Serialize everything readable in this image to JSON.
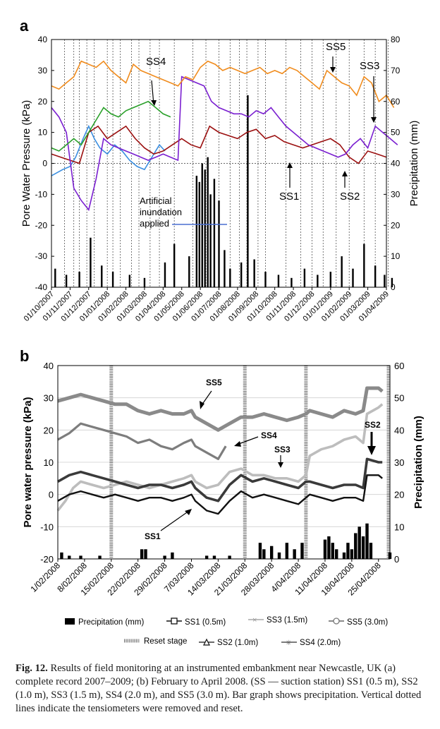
{
  "chart_data": [
    {
      "panel": "a",
      "type": "line",
      "ylabel": "Pore Water Pressure (kPa)",
      "y2label": "Precipitation (mm)",
      "ylim": [
        -40,
        40
      ],
      "y2lim": [
        0,
        80
      ],
      "yticks": [
        "40",
        "30",
        "20",
        "10",
        "0",
        "-10",
        "-20",
        "-30",
        "-40"
      ],
      "y2ticks": [
        "80",
        "70",
        "60",
        "50",
        "40",
        "30",
        "20",
        "10",
        "0"
      ],
      "x_ticks": [
        "01/10/2007",
        "01/11/2007",
        "01/12/2007",
        "01/01/2008",
        "01/02/2008",
        "01/03/2008",
        "01/04/2008",
        "01/05/2008",
        "01/06/2008",
        "01/07/2008",
        "01/08/2008",
        "01/09/2008",
        "01/10/2008",
        "01/11/2008",
        "01/12/2008",
        "01/01/2009",
        "01/02/2009",
        "01/03/2009",
        "01/04/2009"
      ],
      "annotations": {
        "ss4": "SS4",
        "ss5": "SS5",
        "ss3": "SS3",
        "ss1": "SS1",
        "ss2": "SS2",
        "inundation": "Artificial inundation applied"
      },
      "series": [
        {
          "name": "SS1",
          "color": "#3a8ee0",
          "x_months": [
            0,
            0.6,
            1,
            1.3,
            1.7,
            2,
            2.3,
            2.6,
            3,
            3.4,
            3.8,
            4.2,
            4.6,
            5,
            5.4,
            5.8,
            6.1
          ],
          "y": [
            -4,
            -2,
            -1,
            2,
            8,
            12,
            8,
            5,
            3,
            6,
            4,
            1,
            -1,
            -2,
            2,
            6,
            4
          ]
        },
        {
          "name": "SS2",
          "color": "#9b1010",
          "x_months": [
            0,
            0.5,
            1,
            1.5,
            2,
            2.5,
            3,
            3.5,
            4,
            4.5,
            5,
            5.5,
            6,
            6.5,
            7,
            7.5,
            8,
            8.5,
            9,
            9.5,
            10,
            10.5,
            11,
            11.5,
            12,
            12.5,
            13,
            13.5,
            14,
            14.5,
            15,
            15.5,
            16,
            16.5,
            17,
            17.5,
            18
          ],
          "y": [
            3,
            2,
            1,
            0,
            10,
            12,
            8,
            10,
            12,
            8,
            5,
            3,
            4,
            6,
            8,
            6,
            5,
            12,
            10,
            9,
            8,
            10,
            11,
            8,
            9,
            7,
            6,
            5,
            6,
            7,
            8,
            6,
            2,
            0,
            4,
            3,
            2
          ]
        },
        {
          "name": "SS3",
          "color": "#7a1fd0",
          "x_months": [
            0,
            0.4,
            0.8,
            1.2,
            1.6,
            2,
            2.4,
            2.8,
            3.2,
            3.6,
            4,
            4.4,
            4.8,
            5.2,
            5.6,
            6,
            6.4,
            6.8,
            7,
            7.4,
            7.8,
            8.2,
            8.6,
            9,
            9.4,
            9.8,
            10.2,
            10.6,
            11,
            11.4,
            11.8,
            12.2,
            12.6,
            13,
            13.4,
            13.8,
            14.2,
            14.6,
            15,
            15.4,
            15.8,
            16.2,
            16.6,
            17,
            17.4,
            17.8,
            18.2,
            18.6
          ],
          "y": [
            18,
            15,
            10,
            -8,
            -12,
            -15,
            -5,
            8,
            6,
            5,
            4,
            3,
            2,
            1,
            2,
            3,
            2,
            1,
            28,
            27,
            26,
            25,
            20,
            18,
            17,
            16,
            16,
            15,
            17,
            16,
            18,
            15,
            12,
            10,
            8,
            6,
            5,
            4,
            3,
            2,
            3,
            6,
            8,
            5,
            12,
            10,
            8,
            6
          ]
        },
        {
          "name": "SS4",
          "color": "#2aa02a",
          "x_months": [
            0,
            0.4,
            0.8,
            1.2,
            1.6,
            2,
            2.4,
            2.8,
            3.2,
            3.6,
            4,
            4.4,
            4.8,
            5.2,
            5.6,
            6,
            6.4
          ],
          "y": [
            5,
            4,
            6,
            8,
            6,
            10,
            14,
            18,
            16,
            15,
            17,
            18,
            19,
            20,
            18,
            16,
            15
          ]
        },
        {
          "name": "SS5",
          "color": "#f08c1e",
          "x_months": [
            0,
            0.4,
            0.8,
            1.2,
            1.6,
            2,
            2.4,
            2.8,
            3.2,
            3.6,
            4,
            4.4,
            4.8,
            5.2,
            5.6,
            6,
            6.4,
            6.8,
            7.2,
            7.6,
            8,
            8.4,
            8.8,
            9.2,
            9.6,
            10,
            10.4,
            10.8,
            11.2,
            11.6,
            12,
            12.4,
            12.8,
            13.2,
            13.6,
            14,
            14.4,
            14.8,
            15.2,
            15.6,
            16,
            16.4,
            16.8,
            17.2,
            17.6,
            18,
            18.4
          ],
          "y": [
            25,
            24,
            26,
            28,
            33,
            32,
            31,
            33,
            30,
            28,
            26,
            32,
            30,
            29,
            28,
            27,
            26,
            25,
            28,
            27,
            31,
            33,
            32,
            30,
            31,
            30,
            29,
            30,
            31,
            29,
            30,
            29,
            31,
            30,
            28,
            26,
            24,
            30,
            28,
            26,
            25,
            22,
            28,
            26,
            20,
            22,
            18
          ]
        }
      ],
      "precipitation_mm": [
        {
          "x_month": 0.2,
          "v": 6
        },
        {
          "x_month": 0.8,
          "v": 4
        },
        {
          "x_month": 1.5,
          "v": 5
        },
        {
          "x_month": 2.1,
          "v": 16
        },
        {
          "x_month": 2.7,
          "v": 7
        },
        {
          "x_month": 3.3,
          "v": 5
        },
        {
          "x_month": 4.2,
          "v": 4
        },
        {
          "x_month": 5.0,
          "v": 3
        },
        {
          "x_month": 6.1,
          "v": 8
        },
        {
          "x_month": 6.6,
          "v": 14
        },
        {
          "x_month": 7.4,
          "v": 10
        },
        {
          "x_month": 7.8,
          "v": 36
        },
        {
          "x_month": 7.95,
          "v": 34
        },
        {
          "x_month": 8.1,
          "v": 40
        },
        {
          "x_month": 8.25,
          "v": 38
        },
        {
          "x_month": 8.4,
          "v": 42
        },
        {
          "x_month": 8.55,
          "v": 30
        },
        {
          "x_month": 8.75,
          "v": 35
        },
        {
          "x_month": 9.0,
          "v": 28
        },
        {
          "x_month": 9.3,
          "v": 12
        },
        {
          "x_month": 9.6,
          "v": 6
        },
        {
          "x_month": 10.2,
          "v": 8
        },
        {
          "x_month": 10.55,
          "v": 62
        },
        {
          "x_month": 10.9,
          "v": 9
        },
        {
          "x_month": 11.5,
          "v": 5
        },
        {
          "x_month": 12.2,
          "v": 4
        },
        {
          "x_month": 12.9,
          "v": 3
        },
        {
          "x_month": 13.6,
          "v": 6
        },
        {
          "x_month": 14.3,
          "v": 4
        },
        {
          "x_month": 15.0,
          "v": 5
        },
        {
          "x_month": 15.6,
          "v": 10
        },
        {
          "x_month": 16.2,
          "v": 6
        },
        {
          "x_month": 16.8,
          "v": 14
        },
        {
          "x_month": 17.4,
          "v": 7
        },
        {
          "x_month": 17.9,
          "v": 4
        },
        {
          "x_month": 18.3,
          "v": 3
        }
      ],
      "reset_months": [
        0.7,
        1.2,
        1.5,
        1.9,
        2.3,
        3.0,
        3.3,
        3.7,
        4.3,
        4.7,
        5.3,
        5.8,
        6.6,
        7.6,
        8.3,
        9.0,
        9.6,
        10.1,
        10.5,
        11.1,
        11.5,
        12.6,
        13.4,
        14.0,
        14.6,
        15.3,
        16.0,
        16.8,
        17.4,
        18.1
      ]
    },
    {
      "panel": "b",
      "type": "line",
      "ylabel": "Pore water pressure (kPa)",
      "y2label": "Precipitation (mm)",
      "ylim": [
        -20,
        40
      ],
      "y2lim": [
        0,
        60
      ],
      "yticks": [
        "40",
        "30",
        "20",
        "10",
        "0",
        "-10",
        "-20"
      ],
      "y2ticks": [
        "60",
        "50",
        "40",
        "30",
        "20",
        "10",
        "0"
      ],
      "x_ticks": [
        "1/02/2008",
        "8/02/2008",
        "15/02/2008",
        "22/02/2008",
        "29/02/2008",
        "7/03/2008",
        "14/03/2008",
        "21/03/2008",
        "28/03/2008",
        "4/04/2008",
        "11/04/2008",
        "18/04/2008",
        "25/04/2008"
      ],
      "annotations": {
        "ss5": "SS5",
        "ss4": "SS4",
        "ss3": "SS3",
        "ss2": "SS2",
        "ss1": "SS1"
      },
      "series": [
        {
          "name": "SS1 (0.5m)",
          "color": "#111111",
          "x_days": [
            0,
            3,
            6,
            9,
            12,
            15,
            18,
            21,
            24,
            27,
            30,
            33,
            35,
            36,
            39,
            42,
            45,
            48,
            51,
            54,
            57,
            60,
            63,
            65,
            66,
            69,
            72,
            75,
            78,
            80,
            81,
            84,
            85
          ],
          "y": [
            -2,
            0,
            1,
            0,
            -1,
            0,
            -1,
            -2,
            -1,
            -1,
            -2,
            -1,
            0,
            -2,
            -5,
            -6,
            -2,
            1,
            -1,
            0,
            -1,
            -2,
            -3,
            -1,
            0,
            -1,
            -2,
            -1,
            -1,
            -2,
            6,
            6,
            5
          ]
        },
        {
          "name": "SS2 (1.0m)",
          "color": "#3a3a3a",
          "x_days": [
            0,
            3,
            6,
            9,
            12,
            15,
            18,
            21,
            24,
            27,
            30,
            33,
            35,
            36,
            39,
            42,
            45,
            48,
            51,
            54,
            57,
            60,
            63,
            65,
            66,
            69,
            72,
            75,
            78,
            80,
            81,
            84,
            85
          ],
          "y": [
            4,
            6,
            7,
            6,
            5,
            4,
            3,
            2,
            3,
            3,
            2,
            3,
            4,
            2,
            -1,
            -2,
            3,
            6,
            4,
            5,
            4,
            3,
            2,
            4,
            4,
            3,
            2,
            3,
            3,
            2,
            11,
            10,
            10
          ]
        },
        {
          "name": "SS3 (1.5m)",
          "color": "#bdbdbd",
          "x_days": [
            0,
            2,
            4,
            6,
            9,
            12,
            15,
            18,
            21,
            24,
            27,
            30,
            33,
            35,
            36,
            39,
            42,
            45,
            48,
            51,
            54,
            57,
            60,
            63,
            65,
            66,
            69,
            72,
            75,
            78,
            80,
            81,
            84,
            85
          ],
          "y": [
            -5,
            -2,
            2,
            4,
            3,
            2,
            3,
            4,
            3,
            2,
            3,
            4,
            5,
            6,
            4,
            2,
            3,
            7,
            8,
            6,
            6,
            5,
            5,
            4,
            6,
            12,
            14,
            15,
            17,
            18,
            16,
            25,
            27,
            28
          ]
        },
        {
          "name": "SS4 (2.0m)",
          "color": "#7d7d7d",
          "x_days": [
            0,
            3,
            6,
            9,
            12,
            15,
            18,
            21,
            24,
            27,
            30,
            33,
            35,
            36,
            39,
            42,
            44
          ],
          "y": [
            17,
            19,
            22,
            21,
            20,
            19,
            18,
            16,
            17,
            15,
            14,
            16,
            17,
            15,
            13,
            11,
            15
          ]
        },
        {
          "name": "SS5 (3.0m)",
          "color": "#8a8a8a",
          "x_days": [
            0,
            3,
            6,
            9,
            12,
            15,
            18,
            21,
            24,
            27,
            30,
            33,
            35,
            36,
            39,
            42,
            45,
            48,
            51,
            54,
            57,
            60,
            63,
            65,
            66,
            69,
            72,
            75,
            78,
            80,
            81,
            84,
            85
          ],
          "y": [
            29,
            30,
            31,
            30,
            29,
            28,
            28,
            26,
            25,
            26,
            25,
            25,
            26,
            24,
            22,
            20,
            22,
            24,
            24,
            25,
            24,
            23,
            24,
            25,
            26,
            25,
            24,
            26,
            25,
            26,
            33,
            33,
            32
          ]
        }
      ],
      "precipitation_mm": [
        {
          "x_day": 1,
          "v": 2
        },
        {
          "x_day": 3,
          "v": 1
        },
        {
          "x_day": 6,
          "v": 1
        },
        {
          "x_day": 11,
          "v": 1
        },
        {
          "x_day": 22,
          "v": 3
        },
        {
          "x_day": 23,
          "v": 3
        },
        {
          "x_day": 28,
          "v": 1
        },
        {
          "x_day": 30,
          "v": 2
        },
        {
          "x_day": 39,
          "v": 1
        },
        {
          "x_day": 41,
          "v": 1
        },
        {
          "x_day": 45,
          "v": 1
        },
        {
          "x_day": 53,
          "v": 5
        },
        {
          "x_day": 54,
          "v": 3
        },
        {
          "x_day": 56,
          "v": 4
        },
        {
          "x_day": 58,
          "v": 2
        },
        {
          "x_day": 60,
          "v": 5
        },
        {
          "x_day": 62,
          "v": 3
        },
        {
          "x_day": 64,
          "v": 5
        },
        {
          "x_day": 70,
          "v": 6
        },
        {
          "x_day": 71,
          "v": 7
        },
        {
          "x_day": 72,
          "v": 5
        },
        {
          "x_day": 73,
          "v": 3
        },
        {
          "x_day": 75,
          "v": 2
        },
        {
          "x_day": 76,
          "v": 5
        },
        {
          "x_day": 77,
          "v": 3
        },
        {
          "x_day": 78,
          "v": 8
        },
        {
          "x_day": 79,
          "v": 10
        },
        {
          "x_day": 80,
          "v": 7
        },
        {
          "x_day": 81,
          "v": 11
        },
        {
          "x_day": 82,
          "v": 5
        },
        {
          "x_day": 87,
          "v": 2
        }
      ],
      "reset_days": [
        14,
        49,
        65,
        88
      ]
    }
  ],
  "panel_a_label": "a",
  "panel_b_label": "b",
  "legend": {
    "precip": "Precipitation (mm)",
    "ss1": "SS1 (0.5m)",
    "ss3": "SS3 (1.5m)",
    "ss5": "SS5 (3.0m)",
    "reset": "Reset stage",
    "ss2": "SS2 (1.0m)",
    "ss4": "SS4 (2.0m)"
  },
  "caption": {
    "label": "Fig. 12.",
    "text": "Results of field monitoring at an instrumented embankment near Newcastle, UK (a) complete record 2007–2009; (b) February to April 2008. (SS — suction station) SS1 (0.5 m), SS2 (1.0 m), SS3 (1.5 m), SS4 (2.0 m), and SS5 (3.0 m). Bar graph shows precipitation. Vertical dotted lines indicate the tensiometers were removed and reset."
  }
}
